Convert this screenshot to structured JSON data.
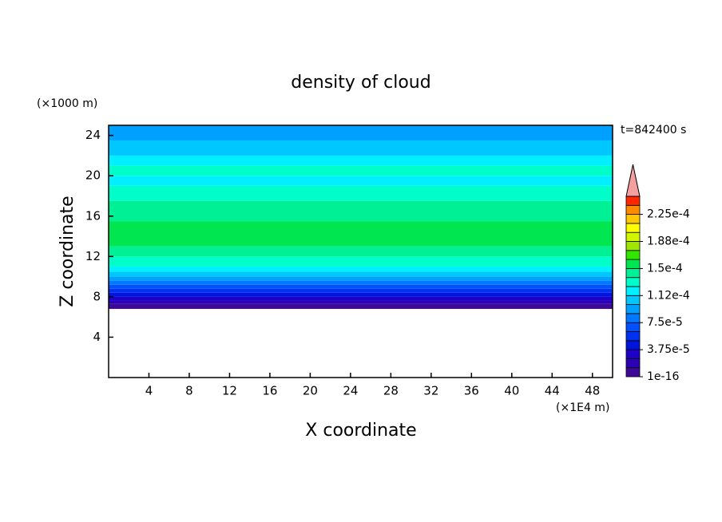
{
  "chart_data": {
    "type": "contour",
    "title": "density of cloud",
    "x_label": "X coordinate",
    "y_label": "Z coordinate",
    "x_unit": "(×1E4 m)",
    "y_unit": "(×1000 m)",
    "annotation": "t=842400 s",
    "xlim": [
      0,
      50
    ],
    "xticks": [
      4,
      8,
      12,
      16,
      20,
      24,
      28,
      32,
      36,
      40,
      44,
      48
    ],
    "ylim": [
      0,
      25
    ],
    "yticks": [
      4,
      8,
      12,
      16,
      20,
      24
    ],
    "field": {
      "z": [
        6.8,
        7.3,
        7.6,
        8.0,
        8.4,
        8.8,
        9.2,
        9.6,
        10.0,
        10.5,
        11.0,
        12.0,
        13.0,
        15.5,
        17.5,
        19.0,
        20.0,
        21.0,
        22.0,
        23.5,
        25.0
      ],
      "values": [
        6e-06,
        1.9e-05,
        3.1e-05,
        4.4e-05,
        5.6e-05,
        6.9e-05,
        8.1e-05,
        9.4e-05,
        0.000106,
        0.000119,
        0.000131,
        0.000144,
        0.000156,
        0.000144,
        0.000131,
        0.000119,
        0.000131,
        0.000119,
        0.000106,
        9.4e-05
      ]
    },
    "levels": [
      0,
      1.25e-05,
      2.5e-05,
      3.75e-05,
      5e-05,
      6.25e-05,
      7.5e-05,
      8.75e-05,
      0.0001,
      0.0001125,
      0.000125,
      0.0001375,
      0.00015,
      0.0001625,
      0.000175,
      0.0001875,
      0.0002,
      0.0002125,
      0.000225,
      0.0002375,
      0.00025
    ],
    "colors": [
      "#3c0a96",
      "#2d00b4",
      "#1e00c8",
      "#0014dc",
      "#0032f0",
      "#0050ff",
      "#0078ff",
      "#00a0ff",
      "#00c8ff",
      "#00f0ff",
      "#00ffc8",
      "#00f096",
      "#00e650",
      "#32e600",
      "#a0e600",
      "#d2f500",
      "#ffff00",
      "#ffc800",
      "#ff8c00",
      "#ff2800"
    ],
    "extend_color": "#f4a0a0",
    "cbar_ticks": [
      {
        "value": 1e-16,
        "label": "1e-16"
      },
      {
        "value": 3.75e-05,
        "label": "3.75e-5"
      },
      {
        "value": 7.5e-05,
        "label": "7.5e-5"
      },
      {
        "value": 0.0001125,
        "label": "1.12e-4"
      },
      {
        "value": 0.00015,
        "label": "1.5e-4"
      },
      {
        "value": 0.0001875,
        "label": "1.88e-4"
      },
      {
        "value": 0.000225,
        "label": "2.25e-4"
      }
    ]
  }
}
